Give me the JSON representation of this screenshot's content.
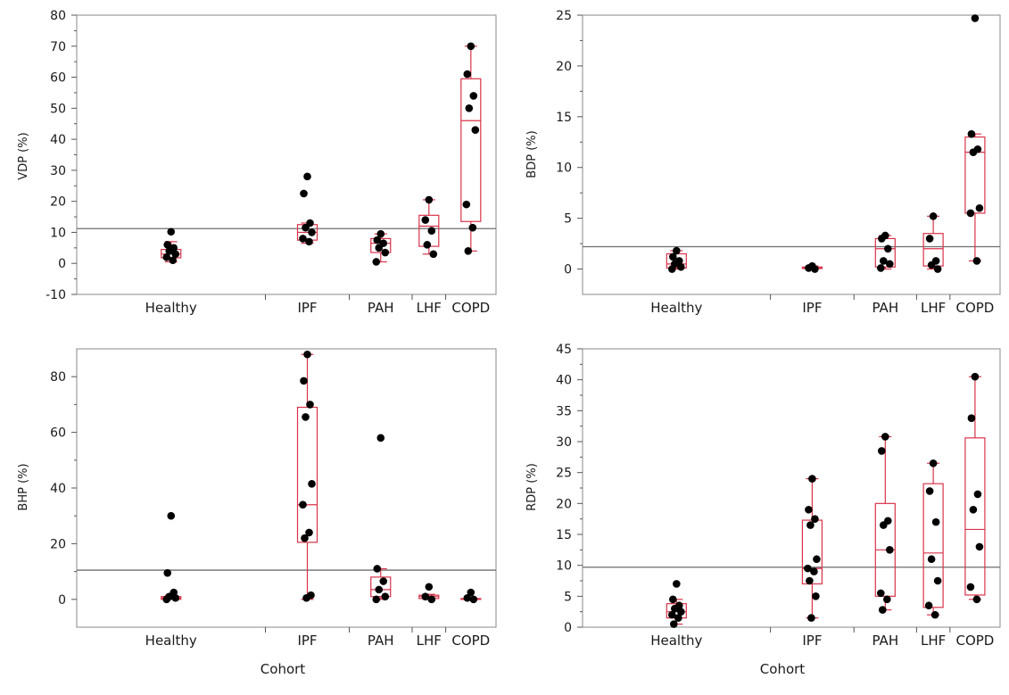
{
  "colors": {
    "box": "#d9334a",
    "point": "#000000",
    "ref": "#6e6e6e",
    "frame": "#8a8a8a",
    "tick": "#555555"
  },
  "chart_data": [
    {
      "type": "box",
      "ylabel": "VDP (%)",
      "xlabel": "",
      "ylim": [
        -10,
        80
      ],
      "yticks": [
        -10,
        0,
        10,
        20,
        30,
        40,
        50,
        60,
        70,
        80
      ],
      "ref_line": 11.2,
      "categories": [
        "Healthy",
        "IPF",
        "PAH",
        "LHF",
        "COPD"
      ],
      "category_weights": [
        9,
        4,
        3,
        1.6,
        2.4
      ],
      "boxes": [
        {
          "whisker_low": 0.5,
          "q1": 1.8,
          "median": 3.0,
          "q3": 4.5,
          "whisker_high": 7.0
        },
        {
          "whisker_low": 6.5,
          "q1": 7.5,
          "median": 10.0,
          "q3": 12.5,
          "whisker_high": 13.0
        },
        {
          "whisker_low": 0.5,
          "q1": 3.5,
          "median": 6.5,
          "q3": 8.0,
          "whisker_high": 9.5
        },
        {
          "whisker_low": 3.0,
          "q1": 5.5,
          "median": 12.0,
          "q3": 15.5,
          "whisker_high": 20.5
        },
        {
          "whisker_low": 4.0,
          "q1": 13.5,
          "median": 46.0,
          "q3": 59.5,
          "whisker_high": 70.0
        }
      ],
      "points": [
        [
          10.2,
          6.0,
          5.0,
          4.0,
          3.0,
          2.0,
          1.0
        ],
        [
          28.0,
          22.5,
          13.0,
          11.5,
          10.0,
          8.0,
          7.0
        ],
        [
          9.5,
          7.5,
          6.5,
          5.0,
          3.5,
          0.5
        ],
        [
          20.5,
          14.0,
          10.5,
          6.0,
          3.0
        ],
        [
          70.0,
          61.0,
          54.0,
          50.0,
          43.0,
          19.0,
          11.5,
          4.0
        ]
      ]
    },
    {
      "type": "box",
      "ylabel": "BDP (%)",
      "xlabel": "",
      "ylim": [
        -2.5,
        25
      ],
      "yticks": [
        0,
        5,
        10,
        15,
        20,
        25
      ],
      "ref_line": 2.2,
      "categories": [
        "Healthy",
        "IPF",
        "PAH",
        "LHF",
        "COPD"
      ],
      "category_weights": [
        9,
        4,
        3,
        1.6,
        2.4
      ],
      "boxes": [
        {
          "whisker_low": 0.0,
          "q1": 0.1,
          "median": 0.5,
          "q3": 1.5,
          "whisker_high": 1.8
        },
        {
          "whisker_low": 0.0,
          "q1": 0.05,
          "median": 0.1,
          "q3": 0.2,
          "whisker_high": 0.3
        },
        {
          "whisker_low": 0.0,
          "q1": 0.2,
          "median": 2.0,
          "q3": 3.0,
          "whisker_high": 3.3
        },
        {
          "whisker_low": 0.0,
          "q1": 0.3,
          "median": 2.0,
          "q3": 3.5,
          "whisker_high": 5.2
        },
        {
          "whisker_low": 0.8,
          "q1": 5.5,
          "median": 11.5,
          "q3": 13.0,
          "whisker_high": 13.3
        }
      ],
      "points": [
        [
          1.8,
          1.2,
          0.8,
          0.5,
          0.2,
          0.0
        ],
        [
          0.3,
          0.1,
          0.0
        ],
        [
          3.3,
          3.0,
          2.0,
          0.8,
          0.5,
          0.1
        ],
        [
          5.2,
          3.0,
          0.8,
          0.4,
          0.0
        ],
        [
          24.7,
          13.3,
          11.8,
          11.5,
          6.0,
          5.5,
          0.8
        ]
      ]
    },
    {
      "type": "box",
      "ylabel": "BHP (%)",
      "xlabel": "Cohort",
      "ylim": [
        -10,
        90
      ],
      "yticks": [
        0,
        20,
        40,
        60,
        80
      ],
      "ref_line": 10.5,
      "categories": [
        "Healthy",
        "IPF",
        "PAH",
        "LHF",
        "COPD"
      ],
      "category_weights": [
        9,
        4,
        3,
        1.6,
        2.4
      ],
      "boxes": [
        {
          "whisker_low": 0.0,
          "q1": 0.0,
          "median": 0.5,
          "q3": 1.0,
          "whisker_high": 1.5
        },
        {
          "whisker_low": 0.0,
          "q1": 20.5,
          "median": 34.0,
          "q3": 69.0,
          "whisker_high": 88.0
        },
        {
          "whisker_low": 0.0,
          "q1": 1.0,
          "median": 3.5,
          "q3": 8.0,
          "whisker_high": 11.0
        },
        {
          "whisker_low": 0.0,
          "q1": 0.3,
          "median": 1.0,
          "q3": 1.5,
          "whisker_high": 1.8
        },
        {
          "whisker_low": 0.0,
          "q1": 0.0,
          "median": 0.0,
          "q3": 0.3,
          "whisker_high": 0.5
        }
      ],
      "points": [
        [
          30.0,
          9.5,
          2.5,
          1.0,
          0.5,
          0.0
        ],
        [
          88.0,
          78.5,
          70.0,
          65.5,
          41.5,
          34.0,
          24.0,
          22.0,
          1.5,
          0.5
        ],
        [
          58.0,
          11.0,
          6.5,
          3.5,
          1.0,
          0.0
        ],
        [
          4.5,
          1.0,
          0.0
        ],
        [
          2.5,
          0.5,
          0.0
        ]
      ]
    },
    {
      "type": "box",
      "ylabel": "RDP (%)",
      "xlabel": "Cohort",
      "ylim": [
        0,
        45
      ],
      "yticks": [
        0,
        5,
        10,
        15,
        20,
        25,
        30,
        35,
        40,
        45
      ],
      "ref_line": 9.7,
      "categories": [
        "Healthy",
        "IPF",
        "PAH",
        "LHF",
        "COPD"
      ],
      "category_weights": [
        9,
        4,
        3,
        1.6,
        2.4
      ],
      "boxes": [
        {
          "whisker_low": 0.5,
          "q1": 1.5,
          "median": 2.5,
          "q3": 3.8,
          "whisker_high": 4.5
        },
        {
          "whisker_low": 1.5,
          "q1": 7.0,
          "median": 9.5,
          "q3": 17.3,
          "whisker_high": 24.0
        },
        {
          "whisker_low": 2.8,
          "q1": 5.0,
          "median": 12.5,
          "q3": 20.0,
          "whisker_high": 30.8
        },
        {
          "whisker_low": 2.0,
          "q1": 3.2,
          "median": 12.0,
          "q3": 23.2,
          "whisker_high": 26.5
        },
        {
          "whisker_low": 4.5,
          "q1": 5.2,
          "median": 15.8,
          "q3": 30.6,
          "whisker_high": 40.5
        }
      ],
      "points": [
        [
          7.0,
          4.5,
          3.5,
          3.0,
          2.5,
          2.0,
          1.5,
          0.5
        ],
        [
          24.0,
          19.0,
          17.5,
          16.5,
          11.0,
          9.5,
          9.0,
          7.5,
          5.0,
          1.5
        ],
        [
          30.8,
          28.5,
          17.2,
          16.5,
          12.5,
          5.5,
          4.5,
          2.8
        ],
        [
          26.5,
          22.0,
          17.0,
          11.0,
          7.5,
          3.5,
          2.0
        ],
        [
          40.5,
          33.8,
          21.5,
          19.0,
          13.0,
          6.5,
          4.5
        ]
      ]
    }
  ]
}
